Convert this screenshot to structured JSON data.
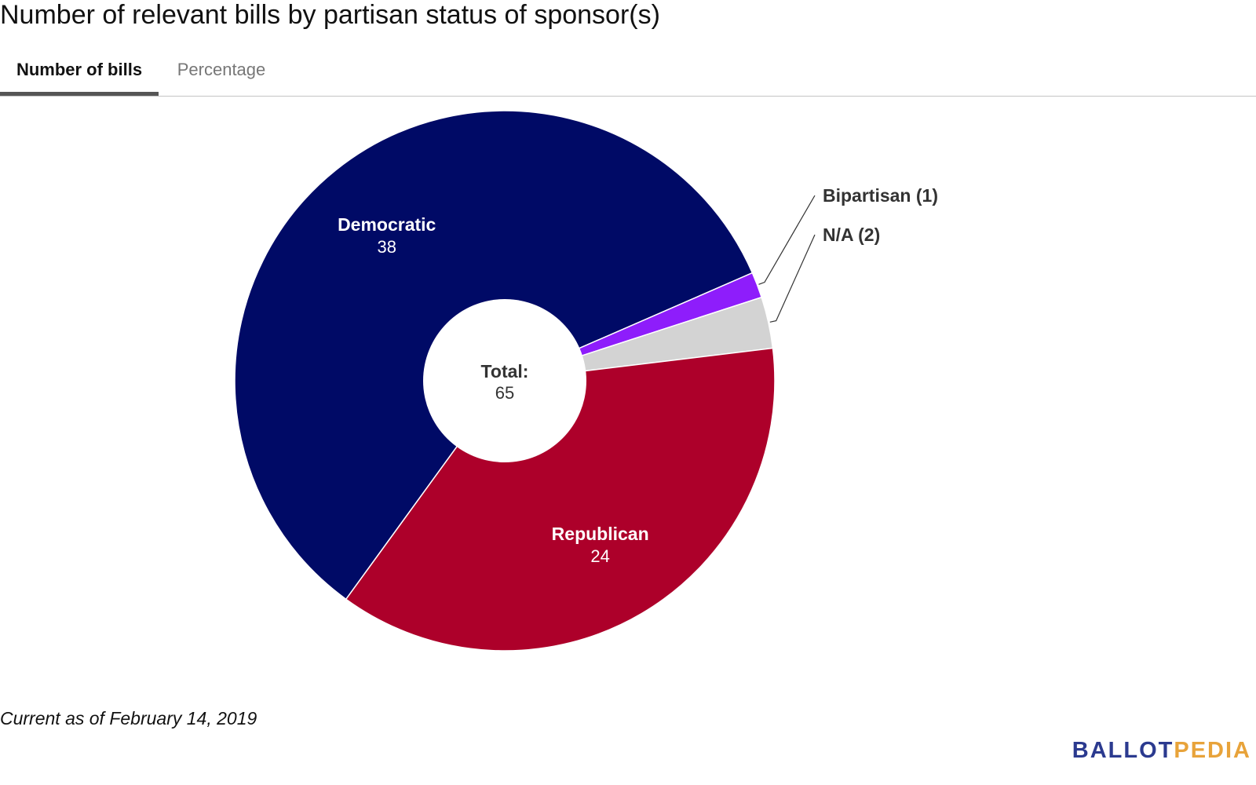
{
  "title": "Number of relevant bills by partisan status of sponsor(s)",
  "tabs": [
    {
      "label": "Number of bills",
      "active": true
    },
    {
      "label": "Percentage",
      "active": false
    }
  ],
  "chart_data": {
    "type": "pie",
    "donut": true,
    "categories": [
      "Democratic",
      "Bipartisan",
      "N/A",
      "Republican"
    ],
    "values": [
      38,
      1,
      2,
      24
    ],
    "colors": [
      "#000a66",
      "#8e1dfb",
      "#d3d3d3",
      "#ad002a"
    ],
    "outside_labels": [
      "Bipartisan (1)",
      "N/A (2)"
    ],
    "center_label": "Total:",
    "center_value": "65"
  },
  "footnote": "Current as of February 14, 2019",
  "brand": {
    "part1": "BALLOT",
    "part2": "PEDIA"
  }
}
